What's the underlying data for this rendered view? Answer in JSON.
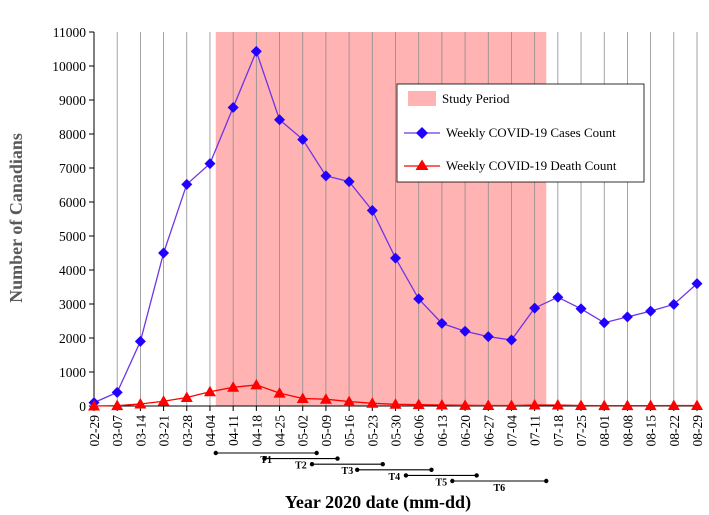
{
  "chart_data": {
    "type": "line",
    "xlabel": "Year 2020 date (mm-dd)",
    "ylabel": "Number of Canadians",
    "ylim": [
      0,
      11000
    ],
    "yticks": [
      "0",
      "1000",
      "2000",
      "3000",
      "4000",
      "5000",
      "6000",
      "7000",
      "8000",
      "9000",
      "10000",
      "11000"
    ],
    "grid": "vertical",
    "categories": [
      "02-29",
      "03-07",
      "03-14",
      "03-21",
      "03-28",
      "04-04",
      "04-11",
      "04-18",
      "04-25",
      "05-02",
      "05-09",
      "05-16",
      "05-23",
      "05-30",
      "06-06",
      "06-13",
      "06-20",
      "06-27",
      "07-04",
      "07-11",
      "07-18",
      "07-25",
      "08-01",
      "08-08",
      "08-15",
      "08-22",
      "08-29"
    ],
    "series": [
      {
        "name": "Weekly COVID-19 Cases Count",
        "color": "#2200ff",
        "line_color": "#6f35e6",
        "marker": "diamond",
        "values": [
          100,
          400,
          1900,
          4500,
          6520,
          7130,
          8780,
          10430,
          8420,
          7840,
          6770,
          6600,
          5750,
          4350,
          3150,
          2430,
          2200,
          2040,
          1940,
          2880,
          3200,
          2860,
          2450,
          2620,
          2790,
          2990,
          3600
        ]
      },
      {
        "name": "Weekly COVID-19 Death Count",
        "color": "#ff0000",
        "marker": "triangle",
        "values": [
          0,
          10,
          60,
          140,
          250,
          420,
          550,
          620,
          380,
          220,
          200,
          130,
          80,
          50,
          40,
          30,
          20,
          15,
          15,
          30,
          30,
          15,
          10,
          10,
          10,
          15,
          15
        ]
      }
    ],
    "shaded_region": {
      "name": "Study Period",
      "color": "#ffb3b3",
      "from_index": 5.25,
      "to_index": 19.5
    },
    "period_markers": [
      {
        "label": "T1",
        "start_index": 5.25,
        "end_index": 9.6
      },
      {
        "label": "T2",
        "start_index": 7.35,
        "end_index": 10.5
      },
      {
        "label": "T3",
        "start_index": 9.4,
        "end_index": 12.45
      },
      {
        "label": "T4",
        "start_index": 11.35,
        "end_index": 14.55
      },
      {
        "label": "T5",
        "start_index": 13.45,
        "end_index": 16.5
      },
      {
        "label": "T6",
        "start_index": 15.45,
        "end_index": 19.5
      }
    ],
    "legend_position": "upper-right"
  }
}
